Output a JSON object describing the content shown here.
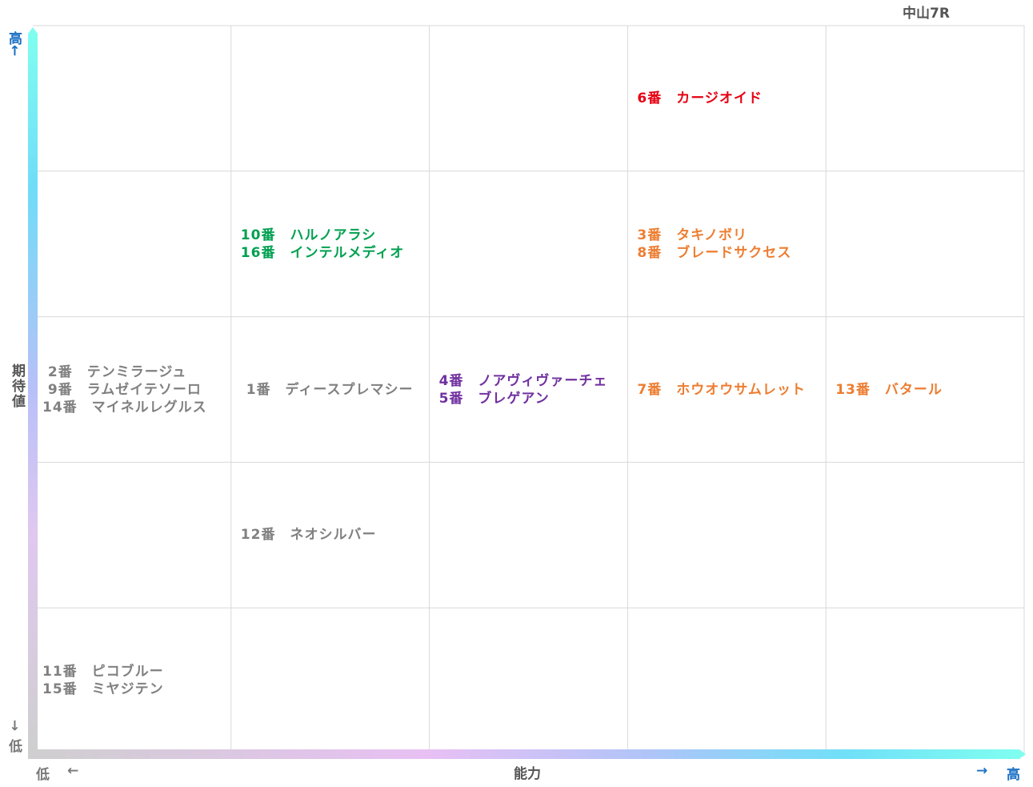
{
  "race_title": "中山7R",
  "x_axis": {
    "label": "能力",
    "low": "低",
    "high": "高",
    "arrow_low": "←",
    "arrow_high": "→"
  },
  "y_axis": {
    "label": "期待値",
    "low": "低",
    "high": "高",
    "arrow_low": "→",
    "arrow_high": "←"
  },
  "colors": {
    "red": "#e60012",
    "orange": "#ed7d31",
    "green": "#00a050",
    "purple": "#7030a0",
    "gray": "#808080"
  },
  "chart_data": {
    "type": "scatter",
    "columns": 5,
    "rows": 5,
    "cells": [
      {
        "col": 0,
        "row": 2,
        "color": "gray",
        "lines": [
          " 2番　テンミラージュ",
          " 9番　ラムゼイテソーロ",
          "14番　マイネルレグルス"
        ]
      },
      {
        "col": 0,
        "row": 0,
        "color": "gray",
        "lines": [
          "11番　ピコブルー",
          "15番　ミヤジテン"
        ]
      },
      {
        "col": 1,
        "row": 3,
        "color": "green",
        "lines": [
          "10番　ハルノアラシ",
          "16番　インテルメディオ"
        ]
      },
      {
        "col": 1,
        "row": 2,
        "color": "gray",
        "lines": [
          " 1番　ディースプレマシー"
        ]
      },
      {
        "col": 1,
        "row": 1,
        "color": "gray",
        "lines": [
          "12番　ネオシルバー"
        ]
      },
      {
        "col": 2,
        "row": 2,
        "color": "purple",
        "lines": [
          "4番　ノアヴィヴァーチェ",
          "5番　ブレゲアン"
        ]
      },
      {
        "col": 3,
        "row": 4,
        "color": "red",
        "lines": [
          "6番　カージオイド"
        ]
      },
      {
        "col": 3,
        "row": 3,
        "color": "orange",
        "lines": [
          "3番　タキノボリ",
          "8番　ブレードサクセス"
        ]
      },
      {
        "col": 3,
        "row": 2,
        "color": "orange",
        "lines": [
          "7番　ホウオウサムレット"
        ]
      },
      {
        "col": 4,
        "row": 2,
        "color": "orange",
        "lines": [
          "13番　バタール"
        ]
      }
    ]
  }
}
